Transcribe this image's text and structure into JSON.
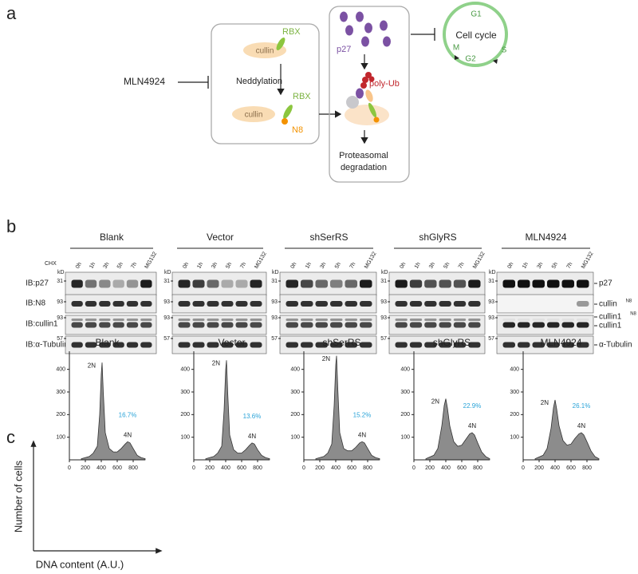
{
  "panels": {
    "a": {
      "label": "a",
      "drug": "MLN4924",
      "neddylation": "Neddylation",
      "rbx": [
        "RBX",
        "RBX"
      ],
      "cullin": [
        "cullin",
        "cullin"
      ],
      "n8": "N8",
      "p27": "p27",
      "poly_ub": "poly-Ub",
      "degradation": [
        "Proteasomal",
        "degradation"
      ],
      "cell_cycle": "Cell cycle",
      "phases": [
        "G1",
        "S",
        "G2",
        "M"
      ]
    },
    "b": {
      "label": "b",
      "chx": "CHX",
      "groups": [
        "Blank",
        "Vector",
        "shSerRS",
        "shGlyRS",
        "MLN4924"
      ],
      "lanes": [
        "0h",
        "1h",
        "3h",
        "5h",
        "7h",
        "MG132"
      ],
      "rows": [
        "IB:p27",
        "IB:N8",
        "IB:cullin1",
        "IB:α-Tubulin"
      ],
      "kd": "kD",
      "markers": [
        31,
        93,
        93,
        57
      ],
      "right_labels": [
        {
          "text": "p27"
        },
        {
          "text": "cullin",
          "sup": "N8"
        },
        {
          "text": "cullin1",
          "sup": "N8"
        },
        {
          "text": "cullin1"
        },
        {
          "text": "α-Tubulin"
        }
      ]
    },
    "c": {
      "label": "c",
      "y_label": "Number of cells",
      "x_label": "DNA content (A.U.)"
    }
  },
  "chart_data": [
    {
      "type": "area",
      "title": "Blank",
      "x": [
        150,
        250,
        300,
        350,
        380,
        400,
        410,
        425,
        450,
        500,
        550,
        600,
        650,
        700,
        730,
        760,
        800,
        850,
        900,
        950
      ],
      "values": [
        5,
        15,
        30,
        60,
        200,
        380,
        430,
        300,
        120,
        50,
        35,
        35,
        50,
        70,
        80,
        75,
        50,
        20,
        10,
        5
      ],
      "peak_labels": [
        "2N",
        "4N"
      ],
      "percent_label": "16.7%",
      "color": "#8c8c8c",
      "xlim": [
        0,
        950
      ],
      "ylim": [
        0,
        480
      ],
      "xticks": [
        0,
        200,
        400,
        600,
        800
      ],
      "yticks": [
        100,
        200,
        300,
        400
      ]
    },
    {
      "type": "area",
      "title": "Vector",
      "x": [
        150,
        250,
        300,
        350,
        380,
        400,
        410,
        425,
        450,
        500,
        550,
        600,
        650,
        700,
        730,
        760,
        800,
        850,
        900,
        950
      ],
      "values": [
        5,
        15,
        30,
        60,
        220,
        400,
        440,
        300,
        110,
        45,
        30,
        30,
        45,
        65,
        75,
        70,
        45,
        20,
        10,
        5
      ],
      "peak_labels": [
        "2N",
        "4N"
      ],
      "percent_label": "13.6%",
      "color": "#8c8c8c",
      "xlim": [
        0,
        950
      ],
      "ylim": [
        0,
        480
      ],
      "xticks": [
        0,
        200,
        400,
        600,
        800
      ],
      "yticks": [
        100,
        200,
        300,
        400
      ]
    },
    {
      "type": "area",
      "title": "shSerRS",
      "x": [
        150,
        250,
        300,
        350,
        380,
        400,
        410,
        425,
        450,
        500,
        550,
        600,
        650,
        700,
        730,
        760,
        800,
        850,
        900,
        950
      ],
      "values": [
        5,
        15,
        30,
        70,
        240,
        420,
        460,
        320,
        120,
        50,
        40,
        40,
        55,
        75,
        80,
        75,
        50,
        20,
        10,
        5
      ],
      "peak_labels": [
        "2N",
        "4N"
      ],
      "percent_label": "15.2%",
      "color": "#8c8c8c",
      "xlim": [
        0,
        950
      ],
      "ylim": [
        0,
        480
      ],
      "xticks": [
        0,
        200,
        400,
        600,
        800
      ],
      "yticks": [
        100,
        200,
        300,
        400
      ]
    },
    {
      "type": "area",
      "title": "shGlyRS",
      "x": [
        150,
        250,
        300,
        350,
        380,
        400,
        420,
        450,
        500,
        550,
        600,
        650,
        700,
        730,
        760,
        800,
        850,
        900,
        950
      ],
      "values": [
        5,
        20,
        50,
        150,
        240,
        270,
        230,
        150,
        80,
        60,
        65,
        90,
        115,
        120,
        110,
        75,
        35,
        15,
        5
      ],
      "peak_labels": [
        "2N",
        "4N"
      ],
      "percent_label": "22.9%",
      "color": "#8c8c8c",
      "xlim": [
        0,
        950
      ],
      "ylim": [
        0,
        480
      ],
      "xticks": [
        0,
        200,
        400,
        600,
        800
      ],
      "yticks": [
        100,
        200,
        300,
        400
      ]
    },
    {
      "type": "area",
      "title": "MLN4924",
      "x": [
        150,
        250,
        300,
        350,
        380,
        400,
        420,
        450,
        500,
        550,
        600,
        650,
        700,
        730,
        760,
        800,
        850,
        900,
        950
      ],
      "values": [
        5,
        20,
        50,
        140,
        230,
        265,
        225,
        150,
        85,
        65,
        70,
        95,
        115,
        120,
        110,
        80,
        40,
        15,
        5
      ],
      "peak_labels": [
        "2N",
        "4N"
      ],
      "percent_label": "26.1%",
      "color": "#8c8c8c",
      "xlim": [
        0,
        950
      ],
      "ylim": [
        0,
        480
      ],
      "xticks": [
        0,
        200,
        400,
        600,
        800
      ],
      "yticks": [
        100,
        200,
        300,
        400
      ]
    }
  ]
}
